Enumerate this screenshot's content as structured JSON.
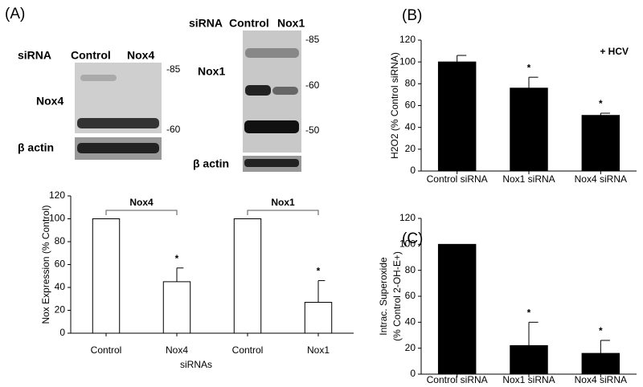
{
  "panels": {
    "a": "(A)",
    "b": "(B)",
    "c": "(C)"
  },
  "blots": [
    {
      "header": [
        "siRNA",
        "Control",
        "Nox4"
      ],
      "row_label": "Nox4",
      "markers": [
        "-85",
        "-60"
      ],
      "loading_label": "β actin"
    },
    {
      "header": [
        "siRNA",
        "Control",
        "Nox1"
      ],
      "row_label": "Nox1",
      "markers": [
        "-85",
        "-60",
        "-50"
      ],
      "loading_label": "β actin"
    }
  ],
  "chart_data": [
    {
      "type": "bar",
      "categories": [
        "Control",
        "Nox4",
        "Control",
        "Nox1"
      ],
      "values": [
        100,
        45,
        100,
        27
      ],
      "errors": [
        null,
        12,
        null,
        19
      ],
      "markers": [
        null,
        "*",
        null,
        "*"
      ],
      "group_labels": [
        "Nox4",
        "Nox1"
      ],
      "color": "#ffffff",
      "ylabel": "Nox Expression (% Control)",
      "xlabel": "siRNAs",
      "ylim": [
        0,
        120
      ],
      "yticks": [
        0,
        20,
        40,
        60,
        80,
        100,
        120
      ]
    },
    {
      "type": "bar",
      "categories": [
        "Control siRNA",
        "Nox1 siRNA",
        "Nox4 siRNA"
      ],
      "values": [
        100,
        76,
        51
      ],
      "errors": [
        6,
        10,
        2
      ],
      "markers": [
        null,
        "*",
        "*"
      ],
      "annotation": "+ HCV",
      "color": "#000000",
      "ylabel": "H2O2 (% Control siRNA)",
      "ylim": [
        0,
        120
      ],
      "yticks": [
        0,
        20,
        40,
        60,
        80,
        100,
        120
      ]
    },
    {
      "type": "bar",
      "categories": [
        "Control siRNA",
        "Nox1 siRNA",
        "Nox4 siRNA"
      ],
      "values": [
        100,
        22,
        16
      ],
      "errors": [
        null,
        18,
        10
      ],
      "markers": [
        null,
        "*",
        "*"
      ],
      "color": "#000000",
      "ylabel": [
        "Intrac. Superoxide",
        "(% Control 2-OH-E+)"
      ],
      "ylim": [
        0,
        120
      ],
      "yticks": [
        0,
        20,
        40,
        60,
        80,
        100,
        120
      ]
    }
  ]
}
